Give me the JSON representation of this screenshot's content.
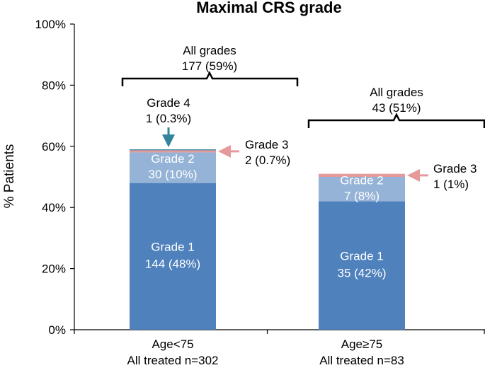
{
  "chart_data": {
    "type": "bar",
    "stacked": true,
    "title": "Maximal CRS grade",
    "ylabel": "% Patients",
    "xlabel": "",
    "ylim": [
      0,
      100
    ],
    "yticks": [
      "0%",
      "20%",
      "40%",
      "60%",
      "80%",
      "100%"
    ],
    "grid": false,
    "categories": [
      {
        "line1": "Age<75",
        "line2": "All treated n=302"
      },
      {
        "line1": "Age≥75",
        "line2": "All treated n=83"
      }
    ],
    "series": [
      {
        "name": "Grade 1",
        "color": "#4f81bd",
        "values": [
          48,
          42
        ],
        "labels": [
          [
            "Grade 1",
            "144 (48%)"
          ],
          [
            "Grade 1",
            "35 (42%)"
          ]
        ]
      },
      {
        "name": "Grade 2",
        "color": "#95b3d7",
        "values": [
          10,
          8
        ],
        "labels": [
          [
            "Grade 2",
            "30 (10%)"
          ],
          [
            "Grade 2",
            "7 (8%)"
          ]
        ]
      },
      {
        "name": "Grade 3",
        "color": "#e6999a",
        "values": [
          0.7,
          1
        ],
        "labels": [
          [
            "Grade 3",
            "2 (0.7%)"
          ],
          [
            "Grade 3",
            "1 (1%)"
          ]
        ]
      },
      {
        "name": "Grade 4",
        "color": "#31849b",
        "values": [
          0.3,
          0
        ],
        "labels": [
          [
            "Grade 4",
            "1 (0.3%)"
          ],
          null
        ]
      }
    ],
    "all_grades": [
      {
        "line1": "All grades",
        "line2": "177 (59%)"
      },
      {
        "line1": "All grades",
        "line2": "43 (51%)"
      }
    ]
  }
}
